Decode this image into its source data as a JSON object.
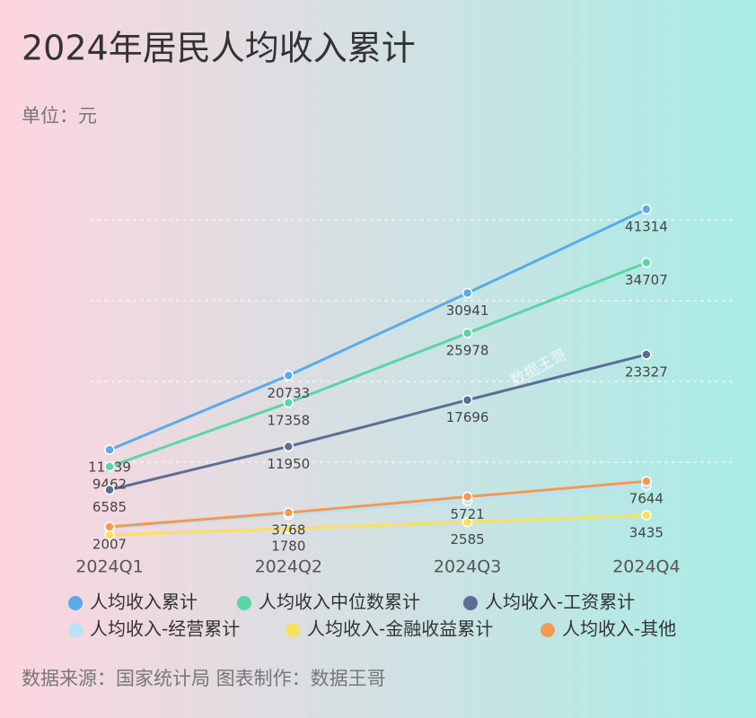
{
  "chart_data": {
    "type": "line",
    "title": "2024年居民人均收入累计",
    "subtitle": "单位：元",
    "source": "数据来源：国家统计局 图表制作：数据王哥",
    "watermark": "数据王哥",
    "categories": [
      "2024Q1",
      "2024Q2",
      "2024Q3",
      "2024Q4"
    ],
    "ylim": [
      0,
      45000
    ],
    "grid_values": [
      10000,
      20000,
      30000,
      40000
    ],
    "series": [
      {
        "name": "人均收入累计",
        "color": "#5aabea",
        "values": [
          11539,
          20733,
          30941,
          41314
        ]
      },
      {
        "name": "人均收入中位数累计",
        "color": "#5ad6a6",
        "values": [
          9462,
          17358,
          25978,
          34707
        ]
      },
      {
        "name": "人均收入-工资累计",
        "color": "#5a6e96",
        "values": [
          6585,
          11950,
          17696,
          23327
        ]
      },
      {
        "name": "人均收入-经营累计",
        "color": "#b7e2f7",
        "values": [
          1900,
          3500,
          5200,
          7100
        ],
        "labels": false
      },
      {
        "name": "人均收入-金融收益累计",
        "color": "#fbe05a",
        "values": [
          1000,
          1780,
          2585,
          3435
        ],
        "value_labels": [
          null,
          "1780",
          "2585",
          "3435"
        ]
      },
      {
        "name": "人均收入-其他",
        "color": "#f29a52",
        "values": [
          2007,
          3768,
          5721,
          7644
        ]
      }
    ]
  }
}
